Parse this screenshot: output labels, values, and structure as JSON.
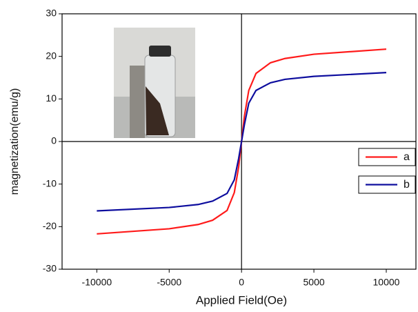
{
  "chart_data": {
    "type": "line",
    "xlabel": "Applied Field(Oe)",
    "ylabel": "magnetization(emu/g)",
    "x": [
      -10000,
      -5000,
      -3000,
      -2000,
      -1000,
      -500,
      -200,
      0,
      200,
      500,
      1000,
      2000,
      3000,
      5000,
      10000
    ],
    "series": [
      {
        "name": "a",
        "color": "#ff1a1a",
        "values": [
          -21.7,
          -20.5,
          -19.5,
          -18.5,
          -16.2,
          -12,
          -6,
          0,
          6,
          12,
          16,
          18.5,
          19.5,
          20.5,
          21.7
        ]
      },
      {
        "name": "b",
        "color": "#0d0d9e",
        "values": [
          -16.3,
          -15.5,
          -14.8,
          -14,
          -12.2,
          -9,
          -4,
          0,
          4,
          9,
          12,
          13.8,
          14.6,
          15.3,
          16.2
        ]
      }
    ],
    "xlim": [
      -12400,
      12050
    ],
    "xticks": [
      -10000,
      -5000,
      0,
      5000,
      10000
    ],
    "ylim": [
      -30,
      30
    ],
    "yticks": [
      -30,
      -20,
      -10,
      0,
      10,
      20,
      30
    ],
    "legend": "right"
  }
}
